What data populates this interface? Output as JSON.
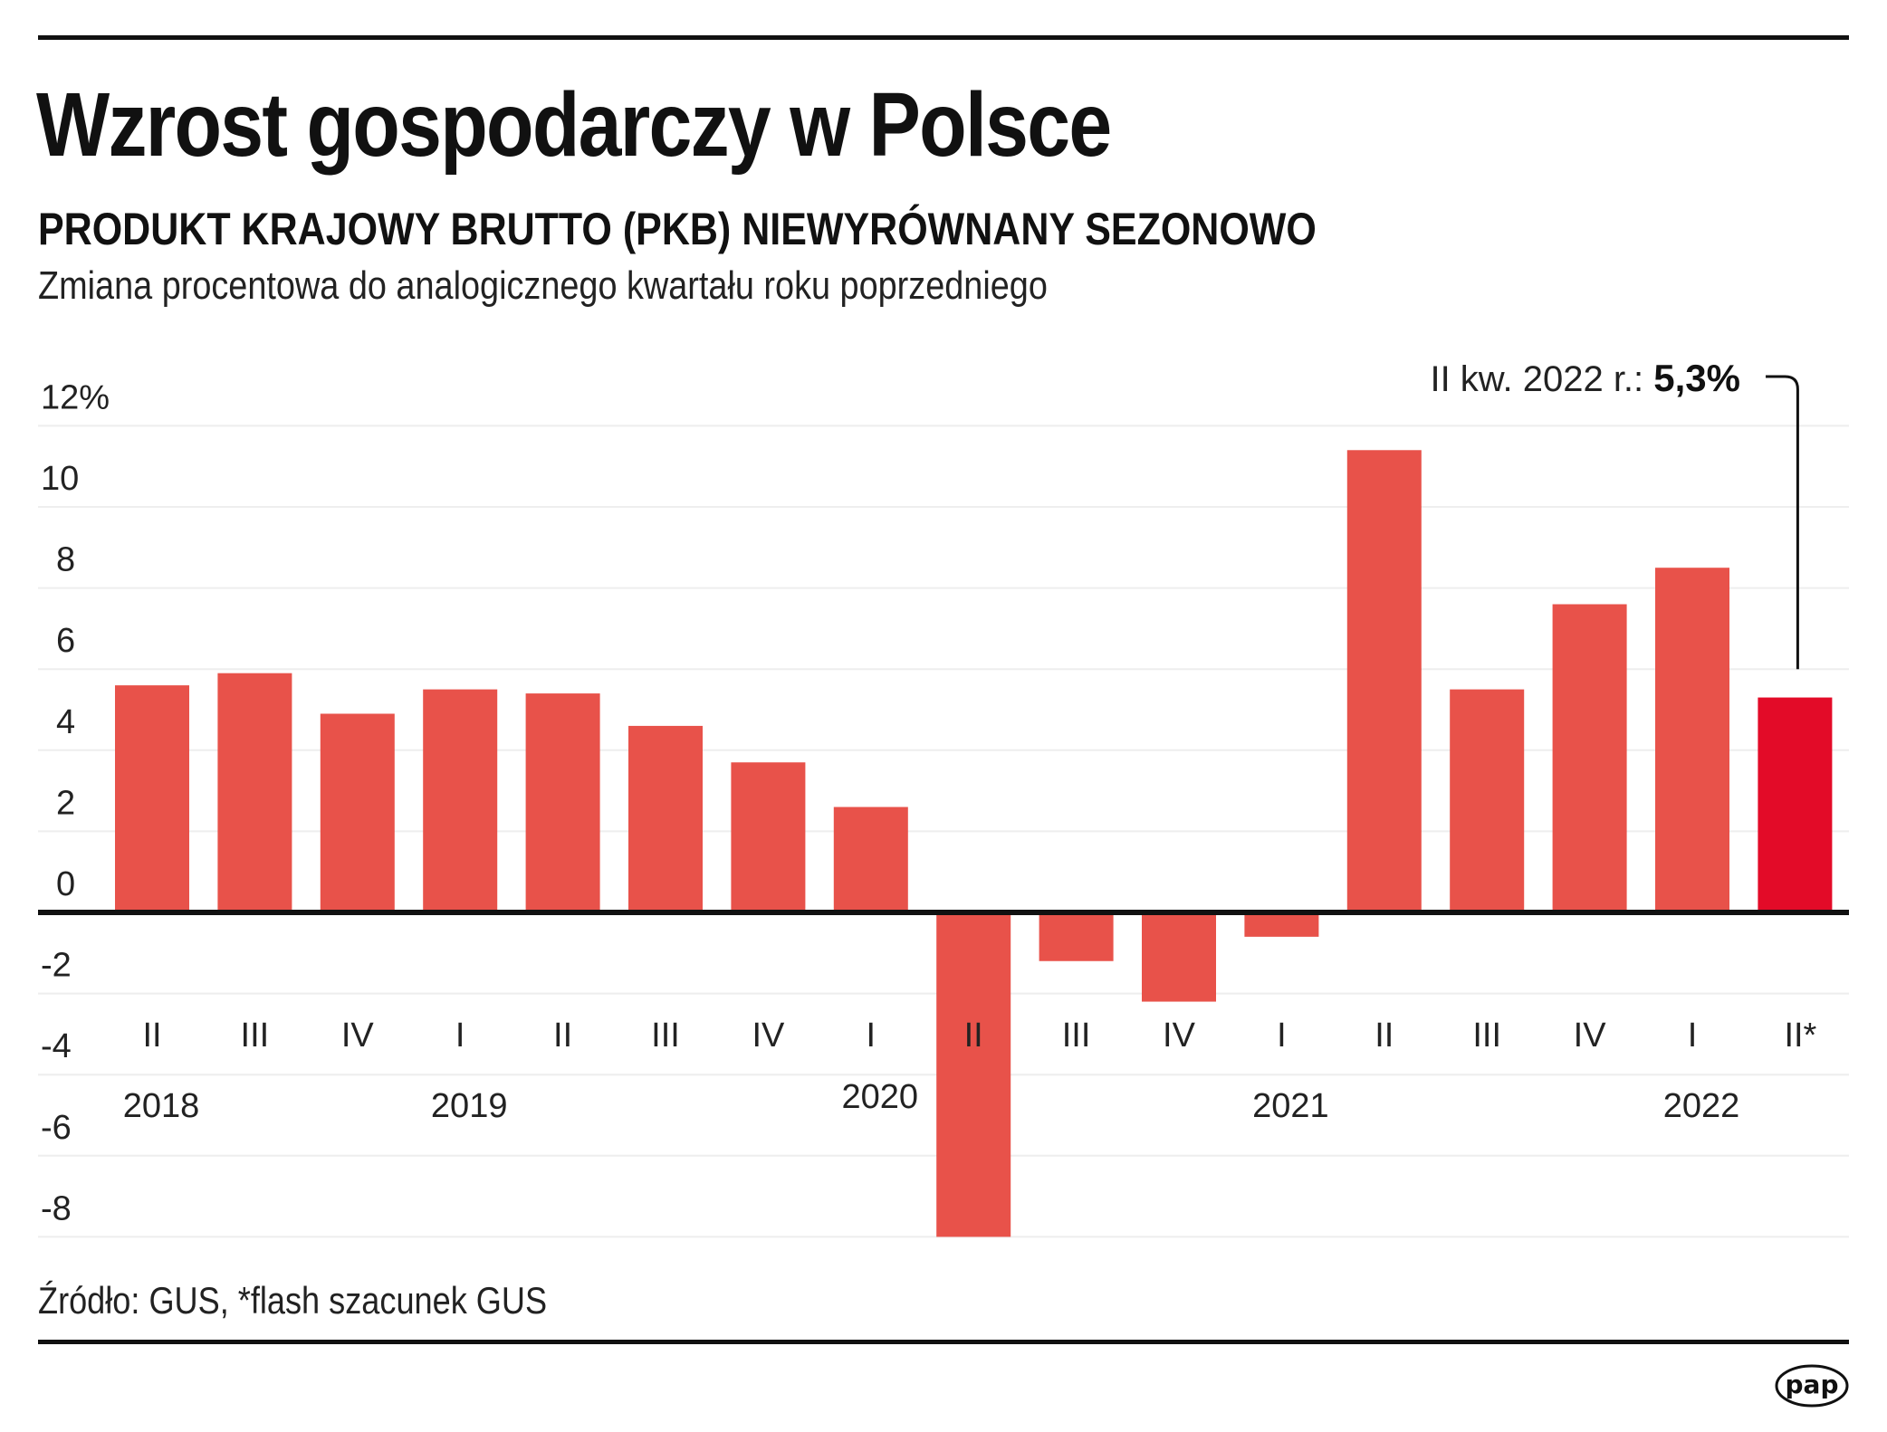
{
  "header": {
    "title": "Wzrost gospodarczy w Polsce",
    "subtitle": "PRODUKT KRAJOWY BRUTTO (PKB) NIEWYRÓWNANY SEZONOWO",
    "description": "Zmiana procentowa do analogicznego kwartału roku poprzedniego"
  },
  "footer": {
    "source": "Źródło: GUS, *flash szacunek GUS",
    "logo_text": "pap"
  },
  "colors": {
    "bar": "#E8524A",
    "highlight": "#E30B28",
    "axis": "#111111",
    "grid": "#EEEEEE",
    "text": "#222222"
  },
  "chart_data": {
    "type": "bar",
    "title": "Wzrost gospodarczy w Polsce",
    "subtitle": "PRODUKT KRAJOWY BRUTTO (PKB) NIEWYRÓWNANY SEZONOWO",
    "ylabel": "Zmiana procentowa do analogicznego kwartału roku poprzedniego",
    "xlabel": "",
    "ylim": [
      -8,
      12
    ],
    "grid": true,
    "y_ticks": [
      12,
      10,
      8,
      6,
      4,
      2,
      0,
      -2,
      -4,
      -6,
      -8
    ],
    "y_tick_labels": [
      "12%",
      "10",
      "8",
      "6",
      "4",
      "2",
      "0",
      "-2",
      "-4",
      "-6",
      "-8"
    ],
    "categories": [
      "II",
      "III",
      "IV",
      "I",
      "II",
      "III",
      "IV",
      "I",
      "II",
      "III",
      "IV",
      "I",
      "II",
      "III",
      "IV",
      "I",
      "II*"
    ],
    "years": [
      "2018",
      "2018",
      "2018",
      "2019",
      "2019",
      "2019",
      "2019",
      "2020",
      "2020",
      "2020",
      "2020",
      "2021",
      "2021",
      "2021",
      "2021",
      "2022",
      "2022"
    ],
    "year_labels": [
      {
        "label": "2018",
        "index": 0
      },
      {
        "label": "2019",
        "index": 3
      },
      {
        "label": "2020",
        "index": 7
      },
      {
        "label": "2021",
        "index": 11
      },
      {
        "label": "2022",
        "index": 15
      }
    ],
    "values": [
      5.6,
      5.9,
      4.9,
      5.5,
      5.4,
      4.6,
      3.7,
      2.6,
      -8.0,
      -1.2,
      -2.2,
      -0.6,
      11.4,
      5.5,
      7.6,
      8.5,
      5.3
    ],
    "highlight_index": 16,
    "annotation": {
      "text": "II kw. 2022 r.: ",
      "value_text": "5,3%",
      "index": 16
    }
  }
}
